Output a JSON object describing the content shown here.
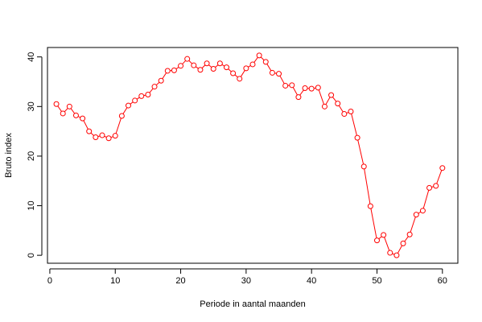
{
  "chart_data": {
    "type": "line",
    "title": "",
    "xlabel": "Periode in aantal maanden",
    "ylabel": "Bruto index",
    "xlim": [
      -0.36,
      62.36
    ],
    "ylim": [
      -1.6,
      41.9
    ],
    "x_ticks": [
      0,
      10,
      20,
      30,
      40,
      50,
      60
    ],
    "y_ticks": [
      0,
      10,
      20,
      30,
      40
    ],
    "marker": "open-circle",
    "grid": false,
    "colors": {
      "series": "#ff0000",
      "axis": "#000000"
    },
    "series": [
      {
        "x": [
          1,
          2,
          3,
          4,
          5,
          6,
          7,
          8,
          9,
          10,
          11,
          12,
          13,
          14,
          15,
          16,
          17,
          18,
          19,
          20,
          21,
          22,
          23,
          24,
          25,
          26,
          27,
          28,
          29,
          30,
          31,
          32,
          33,
          34,
          35,
          36,
          37,
          38,
          39,
          40,
          41,
          42,
          43,
          44,
          45,
          46,
          47,
          48,
          49,
          50,
          51,
          52,
          53,
          54,
          55,
          56,
          57,
          58,
          59,
          60
        ],
        "values": [
          30.5,
          28.6,
          30.0,
          28.2,
          27.6,
          25.0,
          23.8,
          24.2,
          23.6,
          24.1,
          28.1,
          30.2,
          31.2,
          32.1,
          32.4,
          34.0,
          35.2,
          37.2,
          37.3,
          38.2,
          39.6,
          38.3,
          37.4,
          38.7,
          37.6,
          38.7,
          37.9,
          36.7,
          35.6,
          37.7,
          38.5,
          40.3,
          39.0,
          36.8,
          36.6,
          34.2,
          34.3,
          31.9,
          33.7,
          33.6,
          33.8,
          30.0,
          32.3,
          30.6,
          28.5,
          29.0,
          23.7,
          17.9,
          9.9,
          3.0,
          4.1,
          0.5,
          0.0,
          2.4,
          4.2,
          8.2,
          9.0,
          13.6,
          14.0,
          17.6
        ]
      }
    ]
  }
}
